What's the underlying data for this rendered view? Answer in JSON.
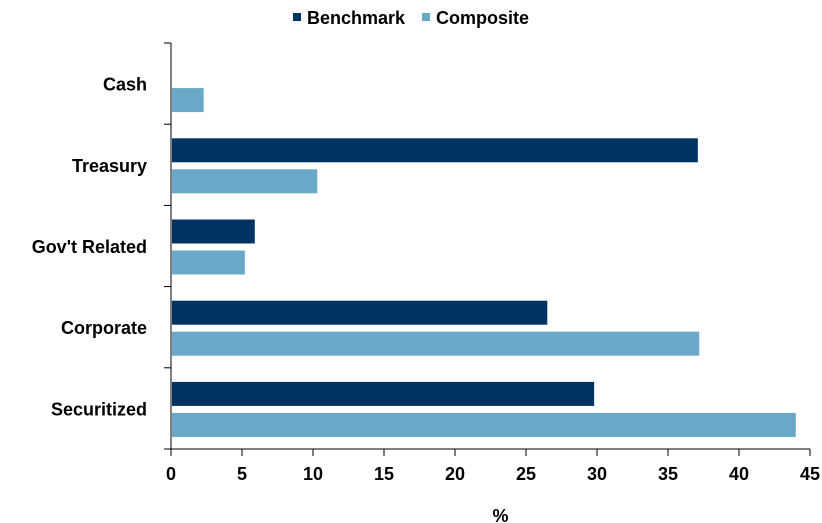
{
  "chart_data": {
    "type": "bar",
    "orientation": "horizontal",
    "categories": [
      "Cash",
      "Treasury",
      "Gov't Related",
      "Corporate",
      "Securitized"
    ],
    "series": [
      {
        "name": "Benchmark",
        "values": [
          0,
          37.1,
          5.9,
          26.5,
          29.8
        ],
        "color": "#003360"
      },
      {
        "name": "Composite",
        "values": [
          2.3,
          10.3,
          5.2,
          37.2,
          44.0
        ],
        "color": "#6aa8c8"
      }
    ],
    "xlabel": "%",
    "ylabel": "",
    "xlim": [
      0,
      45
    ],
    "xticks": [
      0,
      5,
      10,
      15,
      20,
      25,
      30,
      35,
      40,
      45
    ],
    "grid": false,
    "legend": "top-center"
  }
}
